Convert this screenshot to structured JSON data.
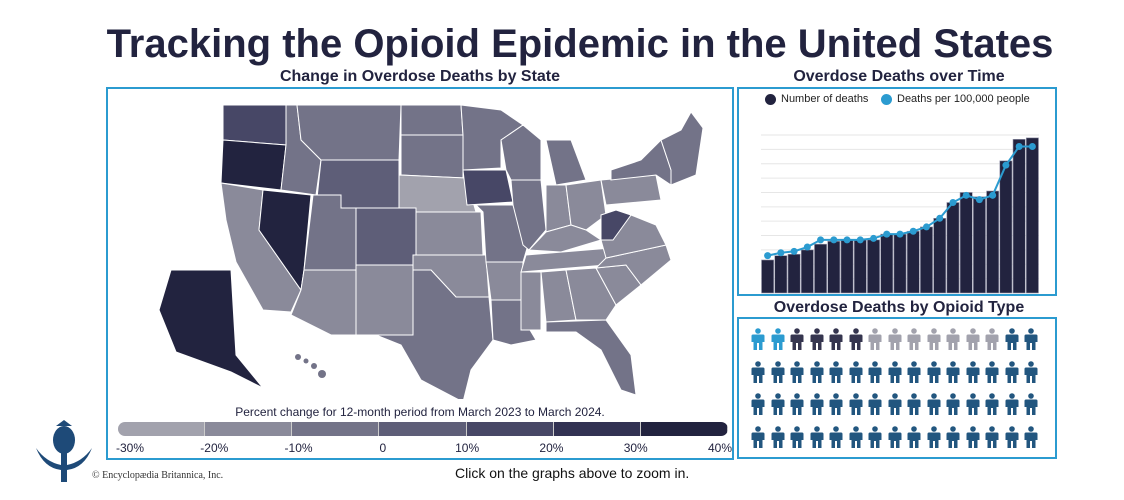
{
  "title": "Tracking the Opioid Epidemic in the United States",
  "map": {
    "title": "Change in Overdose Deaths by State",
    "legend_title": "Percent change for 12-month period from March 2023 to March 2024.",
    "legend_ticks": [
      "-30%",
      "-20%",
      "-10%",
      "0",
      "10%",
      "20%",
      "30%",
      "40%"
    ],
    "legend_colors": [
      "#a2a2ad",
      "#8a8a9a",
      "#737388",
      "#5e5e78",
      "#474766",
      "#323253",
      "#22233f"
    ]
  },
  "chart_data": {
    "type": "bar",
    "title": "Overdose Deaths over Time",
    "xlabel": "",
    "ylabel": "",
    "ylim": [
      0,
      11
    ],
    "grid": true,
    "legend": "top",
    "series": [
      {
        "name": "Number of deaths",
        "type": "bar",
        "color": "#22233f",
        "values": [
          2.3,
          2.6,
          2.7,
          3.0,
          3.4,
          3.6,
          3.7,
          3.7,
          3.7,
          4.1,
          4.1,
          4.3,
          4.6,
          5.2,
          6.3,
          7.0,
          6.7,
          7.1,
          9.2,
          10.7,
          10.8
        ]
      },
      {
        "name": "Deaths per 100,000 people",
        "type": "line",
        "color": "#2b9bd0",
        "values": [
          2.6,
          2.8,
          2.9,
          3.2,
          3.7,
          3.7,
          3.7,
          3.7,
          3.8,
          4.1,
          4.1,
          4.3,
          4.6,
          5.2,
          6.3,
          6.8,
          6.5,
          6.8,
          8.9,
          10.2,
          10.2
        ]
      }
    ]
  },
  "picto": {
    "title": "Overdose Deaths by Opioid Type",
    "groups": [
      {
        "color": "#2b9bd0",
        "count": 2
      },
      {
        "color": "#35354f",
        "count": 4
      },
      {
        "color": "#a2a2ad",
        "count": 7
      },
      {
        "color": "#22567f",
        "count": 47
      }
    ]
  },
  "footer": {
    "click_note": "Click on the graphs above to zoom in.",
    "copyright": "© Encyclopædia Britannica, Inc."
  }
}
